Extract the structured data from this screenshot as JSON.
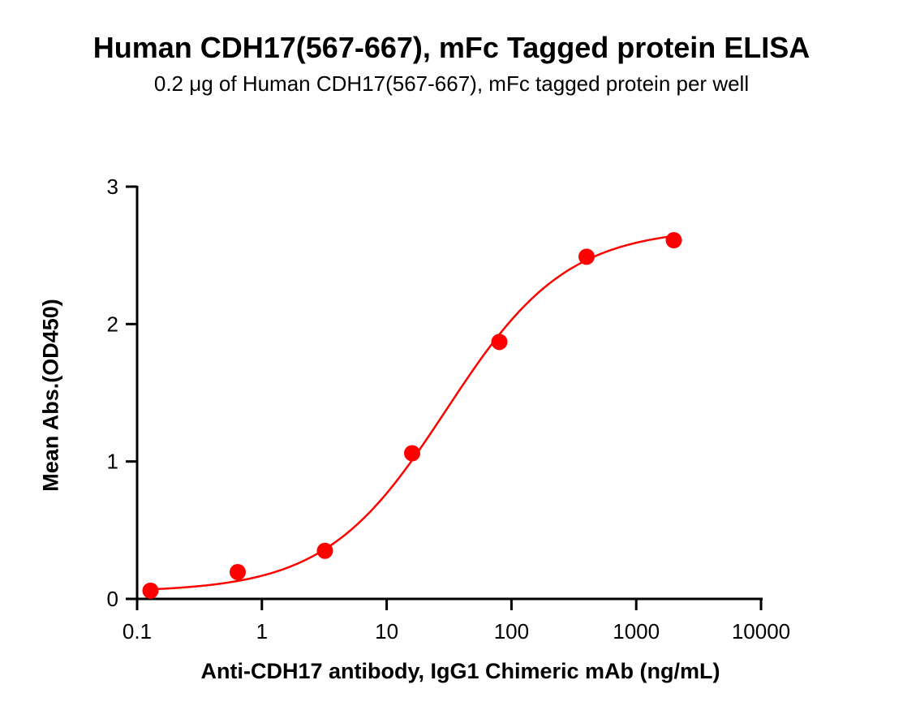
{
  "chart_data": {
    "type": "scatter",
    "title": "Human CDH17(567-667), mFc Tagged protein ELISA",
    "subtitle": "0.2 μg of Human CDH17(567-667), mFc tagged protein per well",
    "xlabel": "Anti-CDH17 antibody, IgG1 Chimeric mAb (ng/mL)",
    "ylabel": "Mean Abs.(OD450)",
    "x_scale": "log",
    "xlim": [
      0.1,
      10000
    ],
    "ylim": [
      0,
      3
    ],
    "x_ticks": [
      "0.1",
      "1",
      "10",
      "100",
      "1000",
      "10000"
    ],
    "y_ticks": [
      "0",
      "1",
      "2",
      "3"
    ],
    "grid": false,
    "legend": null,
    "series": [
      {
        "name": "Human CDH17(567-667), mFc",
        "color": "#ff0000",
        "marker": "circle",
        "x": [
          0.128,
          0.64,
          3.2,
          16,
          80,
          400,
          2000
        ],
        "y": [
          0.06,
          0.195,
          0.35,
          1.06,
          1.87,
          2.49,
          2.61
        ],
        "fit": {
          "model": "4PL",
          "bottom": 0.05,
          "top": 2.7,
          "ec50": 30,
          "hill": 0.9
        }
      }
    ]
  }
}
